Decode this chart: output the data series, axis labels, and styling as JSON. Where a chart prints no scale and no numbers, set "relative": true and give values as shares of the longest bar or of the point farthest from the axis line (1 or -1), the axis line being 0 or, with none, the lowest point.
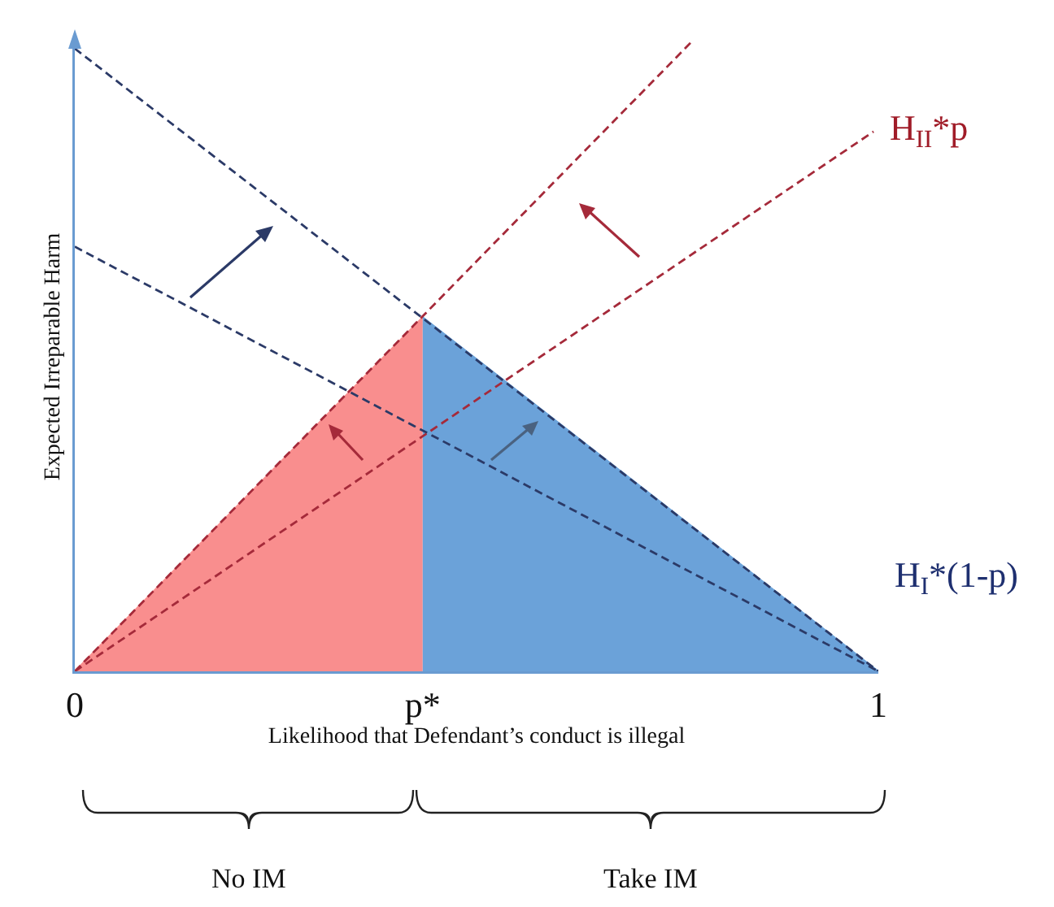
{
  "chart_data": {
    "type": "line",
    "relative": true,
    "xlabel": "Likelihood that Defendant’s conduct is illegal",
    "ylabel": "Expected Irreparable Harm",
    "xlim": [
      0,
      1
    ],
    "xticks": [
      0,
      {
        "value": 0.433,
        "label": "p*"
      },
      1
    ],
    "series": [
      {
        "type": "area",
        "color": "#f98e8e",
        "x": [
          0,
          0.433
        ],
        "values": [
          0,
          0.563
        ]
      },
      {
        "type": "area",
        "color": "#6ba2d9",
        "x": [
          0.433,
          1
        ],
        "values": [
          0.563,
          0
        ]
      },
      {
        "type": "line",
        "color": "#2b3a67",
        "line_style": "dashed",
        "x": [
          0,
          1
        ],
        "values": [
          0.99,
          0
        ]
      },
      {
        "type": "line",
        "color": "#2b3a67",
        "line_style": "dashed",
        "x": [
          0,
          1
        ],
        "values": [
          0.675,
          0
        ]
      },
      {
        "type": "line",
        "color": "#a52a3a",
        "line_style": "dashed",
        "x": [
          0,
          0.767
        ],
        "values": [
          0,
          1
        ]
      },
      {
        "type": "line",
        "color": "#a52a3a",
        "line_style": "dashed",
        "x": [
          0,
          0.994
        ],
        "values": [
          0,
          0.858
        ]
      }
    ],
    "annotations": [
      {
        "text": "H$_{II}$*p",
        "x": 0.994,
        "y": 0.858
      },
      "H$_{I}$*(1-p)",
      "No IM",
      "Take IM"
    ]
  }
}
